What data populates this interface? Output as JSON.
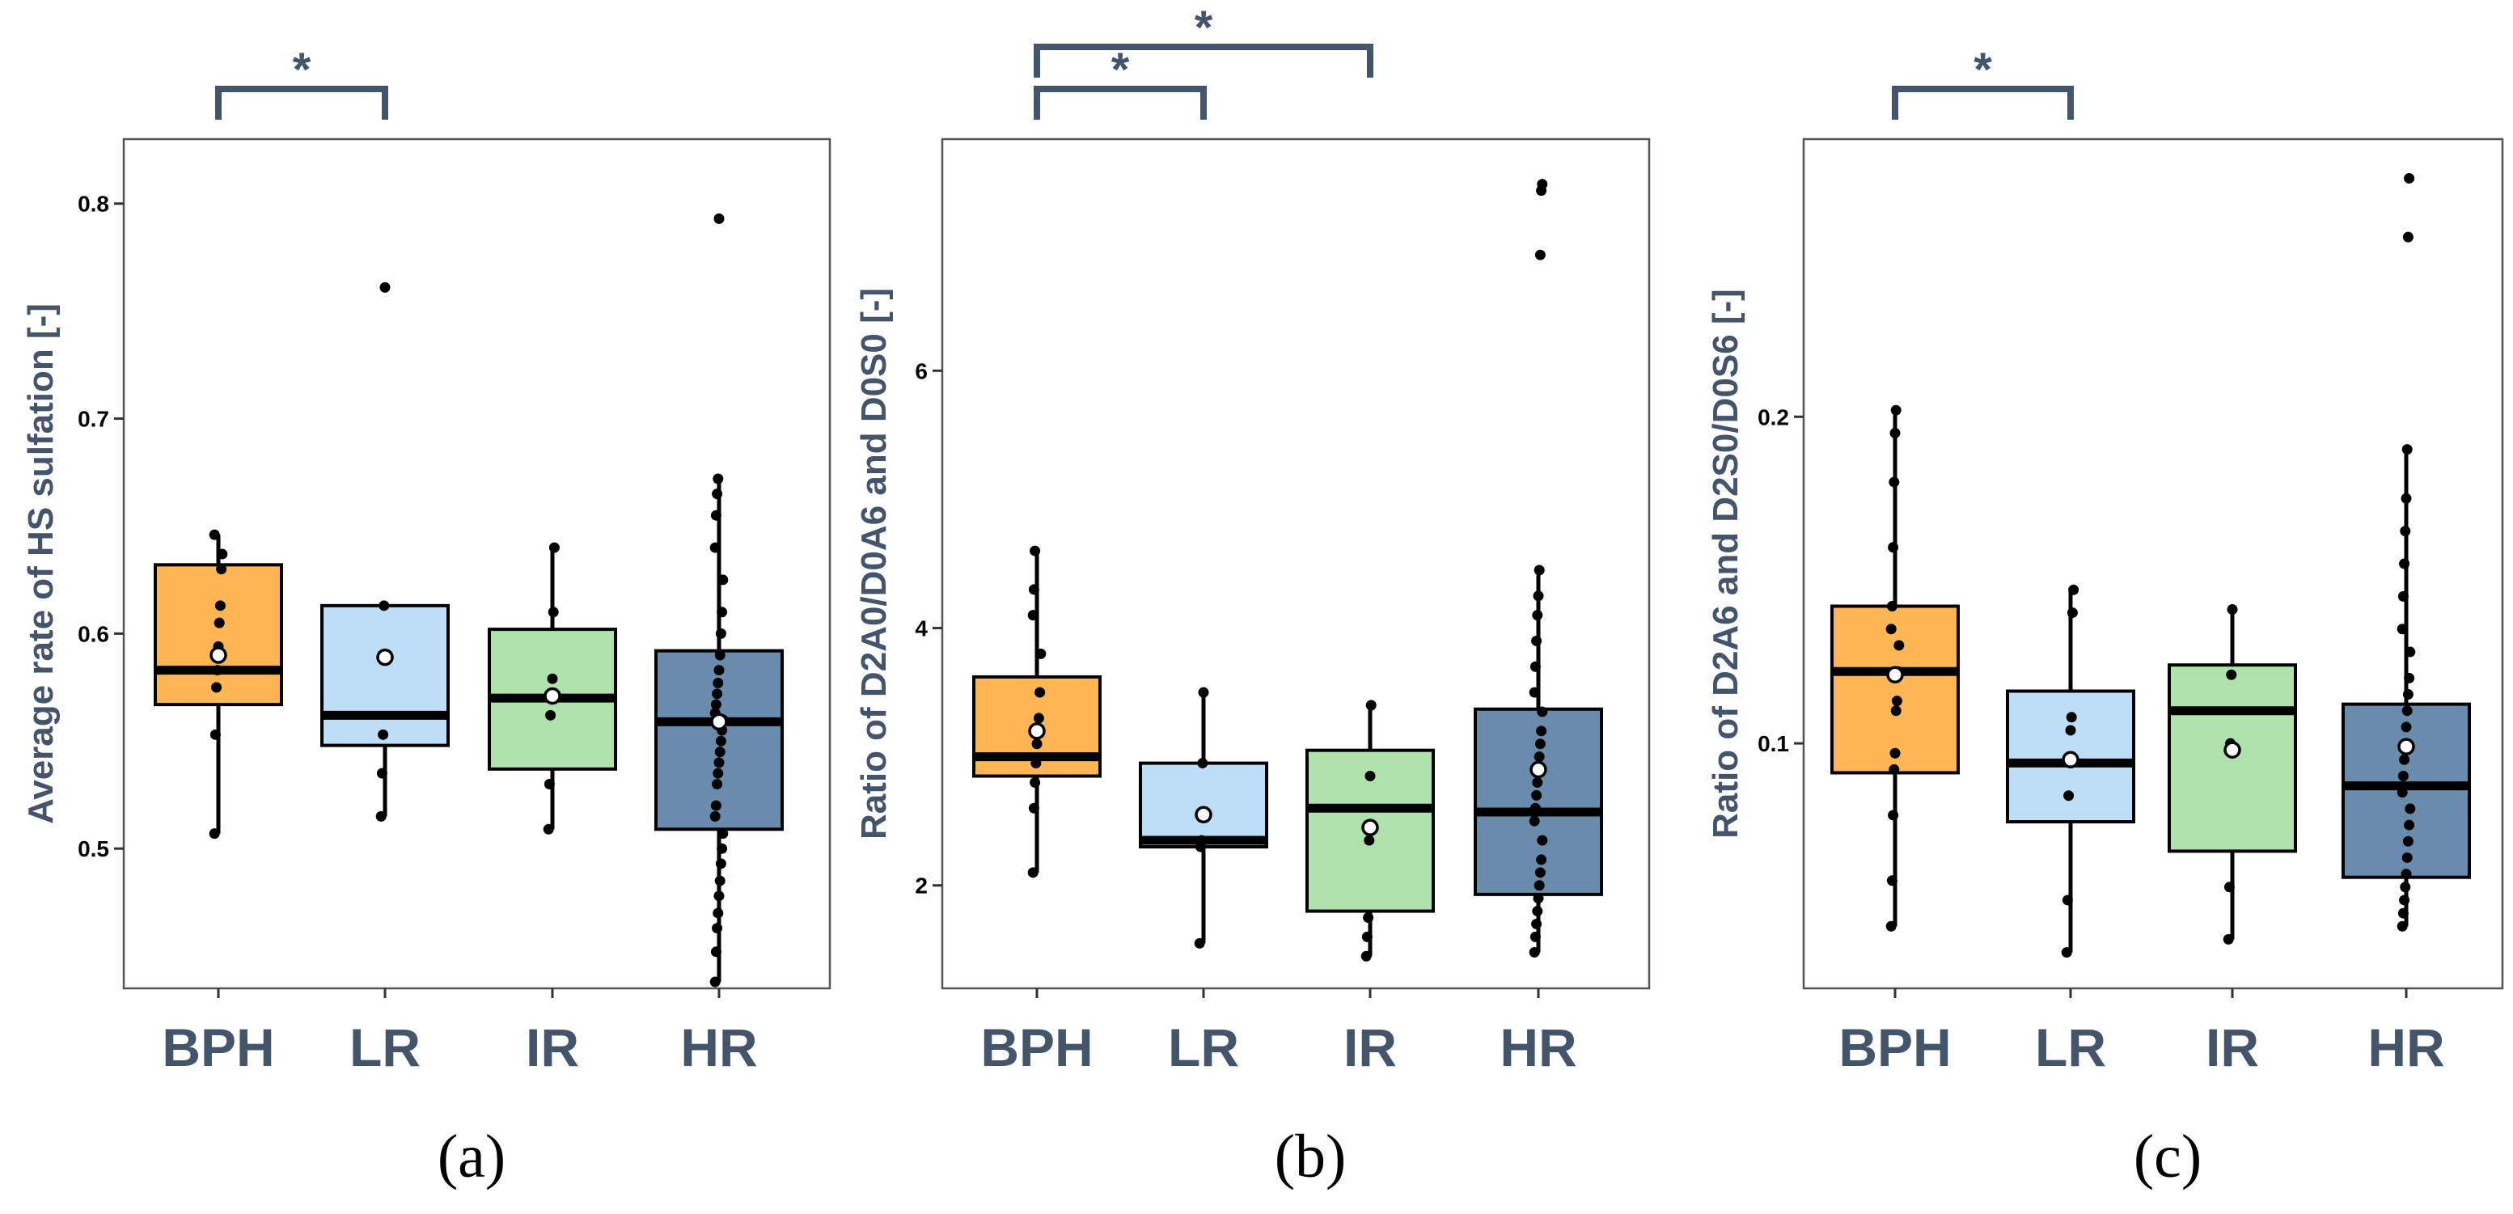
{
  "colors": {
    "BPH": "#FFB653",
    "LR": "#BEDDF6",
    "IR": "#B0E2AE",
    "HR": "#6A8CAC",
    "annotation": "#44546A",
    "median": "#000000"
  },
  "chart_data": [
    {
      "type": "box",
      "panel_label": "(a)",
      "ylabel": "Average rate of HS sulfation [-]",
      "categories": [
        "BPH",
        "LR",
        "IR",
        "HR"
      ],
      "ylim": [
        0.435,
        0.83
      ],
      "yticks": [
        0.5,
        0.6,
        0.7,
        0.8
      ],
      "ytick_labels": [
        "0.5",
        "0.6",
        "0.7",
        "0.8"
      ],
      "boxes": [
        {
          "q1": 0.567,
          "median": 0.583,
          "q3": 0.632,
          "whisker_low": 0.507,
          "whisker_high": 0.646,
          "mean": 0.59,
          "outliers": [],
          "points": [
            0.507,
            0.553,
            0.575,
            0.583,
            0.594,
            0.605,
            0.613,
            0.63,
            0.637,
            0.646
          ]
        },
        {
          "q1": 0.548,
          "median": 0.562,
          "q3": 0.613,
          "whisker_low": 0.515,
          "whisker_high": 0.613,
          "mean": 0.589,
          "outliers": [
            0.761
          ],
          "points": [
            0.515,
            0.535,
            0.553,
            0.613,
            0.761
          ]
        },
        {
          "q1": 0.537,
          "median": 0.57,
          "q3": 0.602,
          "whisker_low": 0.509,
          "whisker_high": 0.64,
          "mean": 0.571,
          "outliers": [],
          "points": [
            0.509,
            0.53,
            0.562,
            0.572,
            0.579,
            0.61,
            0.64
          ]
        },
        {
          "q1": 0.509,
          "median": 0.559,
          "q3": 0.592,
          "whisker_low": 0.438,
          "whisker_high": 0.672,
          "mean": 0.559,
          "outliers": [
            0.793
          ],
          "points": [
            0.438,
            0.452,
            0.463,
            0.47,
            0.478,
            0.485,
            0.493,
            0.5,
            0.507,
            0.515,
            0.52,
            0.53,
            0.535,
            0.54,
            0.545,
            0.55,
            0.555,
            0.56,
            0.563,
            0.567,
            0.572,
            0.577,
            0.583,
            0.59,
            0.6,
            0.61,
            0.625,
            0.64,
            0.655,
            0.665,
            0.672,
            0.793
          ]
        }
      ],
      "significance": [
        {
          "from": "BPH",
          "to": "LR",
          "label": "*",
          "level": 1
        }
      ]
    },
    {
      "type": "box",
      "panel_label": "(b)",
      "ylabel": "Ratio of D2A0/D0A6 and D0S0 [-]",
      "categories": [
        "BPH",
        "LR",
        "IR",
        "HR"
      ],
      "ylim": [
        1.2,
        7.8
      ],
      "yticks": [
        2,
        4,
        6
      ],
      "ytick_labels": [
        "2",
        "4",
        "6"
      ],
      "boxes": [
        {
          "q1": 2.85,
          "median": 3.0,
          "q3": 3.62,
          "whisker_low": 2.1,
          "whisker_high": 4.6,
          "mean": 3.2,
          "outliers": [],
          "points": [
            2.1,
            2.6,
            2.8,
            2.95,
            3.1,
            3.2,
            3.3,
            3.5,
            3.8,
            4.1,
            4.3,
            4.6
          ]
        },
        {
          "q1": 2.3,
          "median": 2.35,
          "q3": 2.95,
          "whisker_low": 1.55,
          "whisker_high": 3.5,
          "mean": 2.55,
          "outliers": [],
          "points": [
            1.55,
            2.3,
            2.35,
            2.95,
            3.5
          ]
        },
        {
          "q1": 1.8,
          "median": 2.6,
          "q3": 3.05,
          "whisker_low": 1.45,
          "whisker_high": 3.4,
          "mean": 2.45,
          "outliers": [],
          "points": [
            1.45,
            1.6,
            1.75,
            2.35,
            2.85,
            3.4
          ]
        },
        {
          "q1": 1.93,
          "median": 2.57,
          "q3": 3.37,
          "whisker_low": 1.48,
          "whisker_high": 4.45,
          "mean": 2.9,
          "outliers": [
            6.9,
            7.4,
            7.45
          ],
          "points": [
            1.48,
            1.6,
            1.7,
            1.8,
            1.9,
            2.0,
            2.1,
            2.2,
            2.35,
            2.5,
            2.6,
            2.7,
            2.8,
            2.9,
            3.0,
            3.1,
            3.2,
            3.35,
            3.5,
            3.7,
            3.9,
            4.1,
            4.25,
            4.45,
            6.9,
            7.4,
            7.45
          ]
        }
      ],
      "significance": [
        {
          "from": "BPH",
          "to": "LR",
          "label": "*",
          "level": 1
        },
        {
          "from": "BPH",
          "to": "IR",
          "label": "*",
          "level": 2
        }
      ]
    },
    {
      "type": "box",
      "panel_label": "(c)",
      "ylabel": "Ratio of D2A6 and D2S0/D0S6 [-]",
      "categories": [
        "BPH",
        "LR",
        "IR",
        "HR"
      ],
      "ylim": [
        0.025,
        0.285
      ],
      "yticks": [
        0.1,
        0.2
      ],
      "ytick_labels": [
        "0.1",
        "0.2"
      ],
      "boxes": [
        {
          "q1": 0.091,
          "median": 0.122,
          "q3": 0.142,
          "whisker_low": 0.044,
          "whisker_high": 0.202,
          "mean": 0.121,
          "outliers": [],
          "points": [
            0.044,
            0.058,
            0.078,
            0.092,
            0.097,
            0.11,
            0.113,
            0.122,
            0.13,
            0.135,
            0.142,
            0.16,
            0.18,
            0.195,
            0.202
          ]
        },
        {
          "q1": 0.076,
          "median": 0.094,
          "q3": 0.116,
          "whisker_low": 0.036,
          "whisker_high": 0.147,
          "mean": 0.095,
          "outliers": [],
          "points": [
            0.036,
            0.052,
            0.084,
            0.095,
            0.104,
            0.108,
            0.14,
            0.147
          ]
        },
        {
          "q1": 0.067,
          "median": 0.11,
          "q3": 0.124,
          "whisker_low": 0.04,
          "whisker_high": 0.141,
          "mean": 0.098,
          "outliers": [],
          "points": [
            0.04,
            0.056,
            0.1,
            0.121,
            0.141
          ]
        },
        {
          "q1": 0.059,
          "median": 0.087,
          "q3": 0.112,
          "whisker_low": 0.044,
          "whisker_high": 0.19,
          "mean": 0.099,
          "outliers": [
            0.255,
            0.273
          ],
          "points": [
            0.044,
            0.048,
            0.052,
            0.056,
            0.06,
            0.065,
            0.07,
            0.075,
            0.08,
            0.085,
            0.09,
            0.095,
            0.1,
            0.105,
            0.11,
            0.115,
            0.12,
            0.128,
            0.135,
            0.145,
            0.155,
            0.165,
            0.175,
            0.19,
            0.255,
            0.273
          ]
        }
      ],
      "significance": [
        {
          "from": "BPH",
          "to": "LR",
          "label": "*",
          "level": 1
        }
      ]
    }
  ]
}
